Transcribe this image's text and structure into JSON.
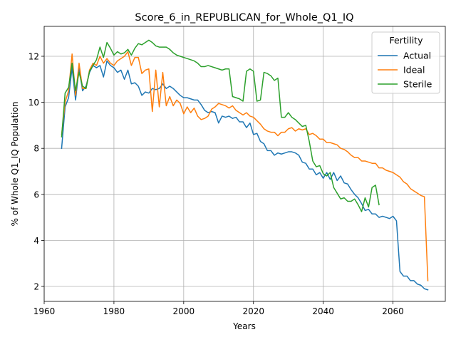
{
  "chart_data": {
    "type": "line",
    "title": "Score_6_in_REPUBLICAN_for_Whole_Q1_IQ",
    "xlabel": "Years",
    "ylabel": "% of Whole Q1_IQ Population",
    "xlim": [
      1960,
      2075
    ],
    "ylim": [
      1.35,
      13.3
    ],
    "xticks": [
      1960,
      1980,
      2000,
      2020,
      2040,
      2060
    ],
    "yticks": [
      2,
      4,
      6,
      8,
      10,
      12
    ],
    "grid": true,
    "legend": {
      "title": "Fertility",
      "position": "top-right"
    },
    "series": [
      {
        "name": "Actual",
        "color": "#1f77b4",
        "points": [
          [
            1965,
            8.0
          ],
          [
            1966,
            9.8
          ],
          [
            1967,
            10.2
          ],
          [
            1968,
            11.5
          ],
          [
            1969,
            10.1
          ],
          [
            1970,
            11.5
          ],
          [
            1971,
            10.5
          ],
          [
            1972,
            10.7
          ],
          [
            1973,
            11.3
          ],
          [
            1974,
            11.6
          ],
          [
            1975,
            11.5
          ],
          [
            1976,
            11.6
          ],
          [
            1977,
            11.1
          ],
          [
            1978,
            11.8
          ],
          [
            1979,
            11.6
          ],
          [
            1980,
            11.5
          ],
          [
            1981,
            11.3
          ],
          [
            1982,
            11.4
          ],
          [
            1983,
            11.0
          ],
          [
            1984,
            11.4
          ],
          [
            1985,
            10.8
          ],
          [
            1986,
            10.85
          ],
          [
            1987,
            10.7
          ],
          [
            1988,
            10.3
          ],
          [
            1989,
            10.45
          ],
          [
            1990,
            10.4
          ],
          [
            1991,
            10.6
          ],
          [
            1992,
            10.55
          ],
          [
            1993,
            10.6
          ],
          [
            1994,
            10.8
          ],
          [
            1995,
            10.6
          ],
          [
            1996,
            10.7
          ],
          [
            1997,
            10.6
          ],
          [
            1998,
            10.45
          ],
          [
            1999,
            10.3
          ],
          [
            2000,
            10.2
          ],
          [
            2001,
            10.2
          ],
          [
            2002,
            10.15
          ],
          [
            2003,
            10.1
          ],
          [
            2004,
            10.1
          ],
          [
            2005,
            9.9
          ],
          [
            2006,
            9.65
          ],
          [
            2007,
            9.55
          ],
          [
            2008,
            9.6
          ],
          [
            2009,
            9.55
          ],
          [
            2010,
            9.1
          ],
          [
            2011,
            9.4
          ],
          [
            2012,
            9.35
          ],
          [
            2013,
            9.4
          ],
          [
            2014,
            9.3
          ],
          [
            2015,
            9.35
          ],
          [
            2016,
            9.15
          ],
          [
            2017,
            9.15
          ],
          [
            2018,
            8.9
          ],
          [
            2019,
            9.1
          ],
          [
            2020,
            8.6
          ],
          [
            2021,
            8.65
          ],
          [
            2022,
            8.3
          ],
          [
            2023,
            8.2
          ],
          [
            2024,
            7.9
          ],
          [
            2025,
            7.9
          ],
          [
            2026,
            7.7
          ],
          [
            2027,
            7.8
          ],
          [
            2028,
            7.75
          ],
          [
            2029,
            7.8
          ],
          [
            2030,
            7.85
          ],
          [
            2031,
            7.85
          ],
          [
            2032,
            7.8
          ],
          [
            2033,
            7.7
          ],
          [
            2034,
            7.4
          ],
          [
            2035,
            7.35
          ],
          [
            2036,
            7.1
          ],
          [
            2037,
            7.1
          ],
          [
            2038,
            6.85
          ],
          [
            2039,
            6.95
          ],
          [
            2040,
            6.7
          ],
          [
            2041,
            6.95
          ],
          [
            2042,
            6.65
          ],
          [
            2043,
            6.95
          ],
          [
            2044,
            6.6
          ],
          [
            2045,
            6.8
          ],
          [
            2046,
            6.5
          ],
          [
            2047,
            6.45
          ],
          [
            2048,
            6.2
          ],
          [
            2049,
            6.0
          ],
          [
            2050,
            5.85
          ],
          [
            2051,
            5.6
          ],
          [
            2052,
            5.3
          ],
          [
            2053,
            5.35
          ],
          [
            2054,
            5.15
          ],
          [
            2055,
            5.15
          ],
          [
            2056,
            5.0
          ],
          [
            2057,
            5.05
          ],
          [
            2058,
            5.0
          ],
          [
            2059,
            4.95
          ],
          [
            2060,
            5.05
          ],
          [
            2061,
            4.85
          ],
          [
            2062,
            2.65
          ],
          [
            2063,
            2.45
          ],
          [
            2064,
            2.45
          ],
          [
            2065,
            2.25
          ],
          [
            2066,
            2.25
          ],
          [
            2067,
            2.1
          ],
          [
            2068,
            2.05
          ],
          [
            2069,
            1.9
          ],
          [
            2070,
            1.85
          ]
        ]
      },
      {
        "name": "Ideal",
        "color": "#ff7f0e",
        "points": [
          [
            1965,
            8.6
          ],
          [
            1966,
            10.0
          ],
          [
            1967,
            10.5
          ],
          [
            1968,
            12.1
          ],
          [
            1969,
            10.3
          ],
          [
            1970,
            11.7
          ],
          [
            1971,
            10.6
          ],
          [
            1972,
            10.6
          ],
          [
            1973,
            11.4
          ],
          [
            1974,
            11.7
          ],
          [
            1975,
            11.6
          ],
          [
            1976,
            12.0
          ],
          [
            1977,
            11.7
          ],
          [
            1978,
            11.9
          ],
          [
            1979,
            11.7
          ],
          [
            1980,
            11.6
          ],
          [
            1981,
            11.8
          ],
          [
            1982,
            11.9
          ],
          [
            1983,
            12.0
          ],
          [
            1984,
            12.2
          ],
          [
            1985,
            11.6
          ],
          [
            1986,
            11.95
          ],
          [
            1987,
            11.95
          ],
          [
            1988,
            11.25
          ],
          [
            1989,
            11.4
          ],
          [
            1990,
            11.45
          ],
          [
            1991,
            9.6
          ],
          [
            1992,
            11.4
          ],
          [
            1993,
            9.8
          ],
          [
            1994,
            11.3
          ],
          [
            1995,
            9.85
          ],
          [
            1996,
            10.25
          ],
          [
            1997,
            9.85
          ],
          [
            1998,
            10.1
          ],
          [
            1999,
            9.95
          ],
          [
            2000,
            9.5
          ],
          [
            2001,
            9.8
          ],
          [
            2002,
            9.55
          ],
          [
            2003,
            9.75
          ],
          [
            2004,
            9.4
          ],
          [
            2005,
            9.25
          ],
          [
            2006,
            9.3
          ],
          [
            2007,
            9.4
          ],
          [
            2008,
            9.7
          ],
          [
            2009,
            9.8
          ],
          [
            2010,
            9.95
          ],
          [
            2011,
            9.9
          ],
          [
            2012,
            9.85
          ],
          [
            2013,
            9.75
          ],
          [
            2014,
            9.85
          ],
          [
            2015,
            9.65
          ],
          [
            2016,
            9.55
          ],
          [
            2017,
            9.45
          ],
          [
            2018,
            9.55
          ],
          [
            2019,
            9.4
          ],
          [
            2020,
            9.35
          ],
          [
            2021,
            9.2
          ],
          [
            2022,
            9.05
          ],
          [
            2023,
            8.85
          ],
          [
            2024,
            8.75
          ],
          [
            2025,
            8.7
          ],
          [
            2026,
            8.7
          ],
          [
            2027,
            8.55
          ],
          [
            2028,
            8.7
          ],
          [
            2029,
            8.7
          ],
          [
            2030,
            8.85
          ],
          [
            2031,
            8.9
          ],
          [
            2032,
            8.75
          ],
          [
            2033,
            8.85
          ],
          [
            2034,
            8.8
          ],
          [
            2035,
            8.85
          ],
          [
            2036,
            8.6
          ],
          [
            2037,
            8.65
          ],
          [
            2038,
            8.55
          ],
          [
            2039,
            8.4
          ],
          [
            2040,
            8.4
          ],
          [
            2041,
            8.25
          ],
          [
            2042,
            8.25
          ],
          [
            2043,
            8.2
          ],
          [
            2044,
            8.15
          ],
          [
            2045,
            8.0
          ],
          [
            2046,
            7.95
          ],
          [
            2047,
            7.85
          ],
          [
            2048,
            7.7
          ],
          [
            2049,
            7.6
          ],
          [
            2050,
            7.6
          ],
          [
            2051,
            7.45
          ],
          [
            2052,
            7.45
          ],
          [
            2053,
            7.4
          ],
          [
            2054,
            7.35
          ],
          [
            2055,
            7.35
          ],
          [
            2056,
            7.15
          ],
          [
            2057,
            7.15
          ],
          [
            2058,
            7.05
          ],
          [
            2059,
            7.0
          ],
          [
            2060,
            6.95
          ],
          [
            2061,
            6.85
          ],
          [
            2062,
            6.75
          ],
          [
            2063,
            6.55
          ],
          [
            2064,
            6.45
          ],
          [
            2065,
            6.25
          ],
          [
            2066,
            6.15
          ],
          [
            2067,
            6.05
          ],
          [
            2068,
            5.95
          ],
          [
            2069,
            5.9
          ],
          [
            2070,
            2.25
          ]
        ]
      },
      {
        "name": "Sterile",
        "color": "#2ca02c",
        "points": [
          [
            1965,
            8.5
          ],
          [
            1966,
            10.4
          ],
          [
            1967,
            10.65
          ],
          [
            1968,
            11.7
          ],
          [
            1969,
            10.5
          ],
          [
            1970,
            11.3
          ],
          [
            1971,
            10.7
          ],
          [
            1972,
            10.6
          ],
          [
            1973,
            11.35
          ],
          [
            1974,
            11.6
          ],
          [
            1975,
            11.85
          ],
          [
            1976,
            12.4
          ],
          [
            1977,
            11.95
          ],
          [
            1978,
            12.6
          ],
          [
            1979,
            12.35
          ],
          [
            1980,
            12.05
          ],
          [
            1981,
            12.2
          ],
          [
            1982,
            12.1
          ],
          [
            1983,
            12.15
          ],
          [
            1984,
            12.3
          ],
          [
            1985,
            12.05
          ],
          [
            1986,
            12.35
          ],
          [
            1987,
            12.55
          ],
          [
            1988,
            12.5
          ],
          [
            1989,
            12.6
          ],
          [
            1990,
            12.7
          ],
          [
            1991,
            12.6
          ],
          [
            1992,
            12.45
          ],
          [
            1993,
            12.4
          ],
          [
            1994,
            12.4
          ],
          [
            1995,
            12.4
          ],
          [
            1996,
            12.3
          ],
          [
            1997,
            12.15
          ],
          [
            1998,
            12.05
          ],
          [
            1999,
            12.0
          ],
          [
            2000,
            11.95
          ],
          [
            2001,
            11.9
          ],
          [
            2002,
            11.85
          ],
          [
            2003,
            11.8
          ],
          [
            2004,
            11.7
          ],
          [
            2005,
            11.55
          ],
          [
            2006,
            11.55
          ],
          [
            2007,
            11.6
          ],
          [
            2008,
            11.55
          ],
          [
            2009,
            11.5
          ],
          [
            2010,
            11.45
          ],
          [
            2011,
            11.4
          ],
          [
            2012,
            11.45
          ],
          [
            2013,
            11.45
          ],
          [
            2014,
            10.25
          ],
          [
            2015,
            10.2
          ],
          [
            2016,
            10.15
          ],
          [
            2017,
            10.05
          ],
          [
            2018,
            11.35
          ],
          [
            2019,
            11.45
          ],
          [
            2020,
            11.35
          ],
          [
            2021,
            10.05
          ],
          [
            2022,
            10.1
          ],
          [
            2023,
            11.3
          ],
          [
            2024,
            11.25
          ],
          [
            2025,
            11.15
          ],
          [
            2026,
            10.95
          ],
          [
            2027,
            11.05
          ],
          [
            2028,
            9.35
          ],
          [
            2029,
            9.35
          ],
          [
            2030,
            9.55
          ],
          [
            2031,
            9.35
          ],
          [
            2032,
            9.25
          ],
          [
            2033,
            9.1
          ],
          [
            2034,
            8.95
          ],
          [
            2035,
            9.0
          ],
          [
            2036,
            8.3
          ],
          [
            2037,
            7.45
          ],
          [
            2038,
            7.2
          ],
          [
            2039,
            7.25
          ],
          [
            2040,
            6.9
          ],
          [
            2041,
            6.8
          ],
          [
            2042,
            6.95
          ],
          [
            2043,
            6.3
          ],
          [
            2044,
            6.05
          ],
          [
            2045,
            5.8
          ],
          [
            2046,
            5.85
          ],
          [
            2047,
            5.7
          ],
          [
            2048,
            5.7
          ],
          [
            2049,
            5.8
          ],
          [
            2050,
            5.55
          ],
          [
            2051,
            5.25
          ],
          [
            2052,
            5.85
          ],
          [
            2053,
            5.45
          ],
          [
            2054,
            6.3
          ],
          [
            2055,
            6.4
          ],
          [
            2056,
            5.55
          ]
        ]
      }
    ]
  }
}
